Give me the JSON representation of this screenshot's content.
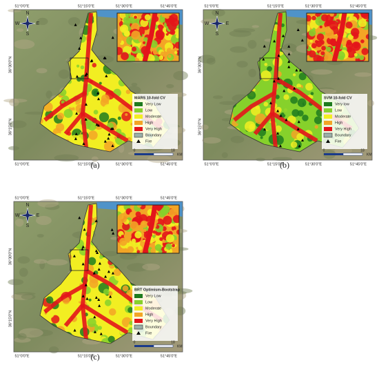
{
  "panels": [
    {
      "label": "(a)",
      "legend": {
        "title": "MARS 10-fold CV",
        "items": [
          "Very Low",
          "Low",
          "Moderate",
          "High",
          "Very High",
          "Boundary",
          "Fire"
        ]
      },
      "top_coords": [
        "51°0'0\"E",
        "51°15'0\"E",
        "51°30'0\"E",
        "51°45'0\"E"
      ],
      "bottom_coords": [
        "51°0'0\"E",
        "51°15'0\"E",
        "51°30'0\"E",
        "51°45'0\"E"
      ],
      "left_coords": [
        "36°30'0\"N",
        "36°15'0\"N"
      ],
      "scale": [
        "0",
        "18",
        "KM"
      ],
      "compass": [
        "N",
        "S",
        "E",
        "W"
      ]
    },
    {
      "label": "(b)",
      "legend": {
        "title": "SVM 10-fold CV",
        "items": [
          "Very low",
          "Low",
          "Moderate",
          "High",
          "Very High",
          "Boundary",
          "Fire"
        ]
      },
      "top_coords": [
        "51°0'0\"E",
        "51°15'0\"E",
        "51°30'0\"E",
        "51°45'0\"E"
      ],
      "bottom_coords": [
        "51°0'0\"E",
        "51°15'0\"E",
        "51°30'0\"E",
        "51°45'0\"E"
      ],
      "left_coords": [
        "36°30'0\"N",
        "36°15'0\"N"
      ],
      "scale": [
        "0",
        "18",
        "KM"
      ],
      "compass": [
        "N",
        "S",
        "E",
        "W"
      ]
    },
    {
      "label": "(c)",
      "legend": {
        "title": "BRT Optimism-Bootstrap",
        "items": [
          "Very Low",
          "Low",
          "Moderate",
          "High",
          "Very High",
          "Boundary",
          "Fire"
        ]
      },
      "top_coords": [
        "51°0'0\"E",
        "51°15'0\"E",
        "51°30'0\"E",
        "51°45'0\"E"
      ],
      "bottom_coords": [
        "51°0'0\"E",
        "51°15'0\"E",
        "51°30'0\"E",
        "51°45'0\"E"
      ],
      "left_coords": [
        "36°30'0\"N",
        "36°15'0\"N"
      ],
      "scale": [
        "0",
        "18",
        "KM"
      ],
      "compass": [
        "N",
        "S",
        "E",
        "W"
      ]
    }
  ],
  "class_colors": [
    "#1e7b1e",
    "#86d12b",
    "#f2ee22",
    "#f3a526",
    "#e3151b"
  ]
}
